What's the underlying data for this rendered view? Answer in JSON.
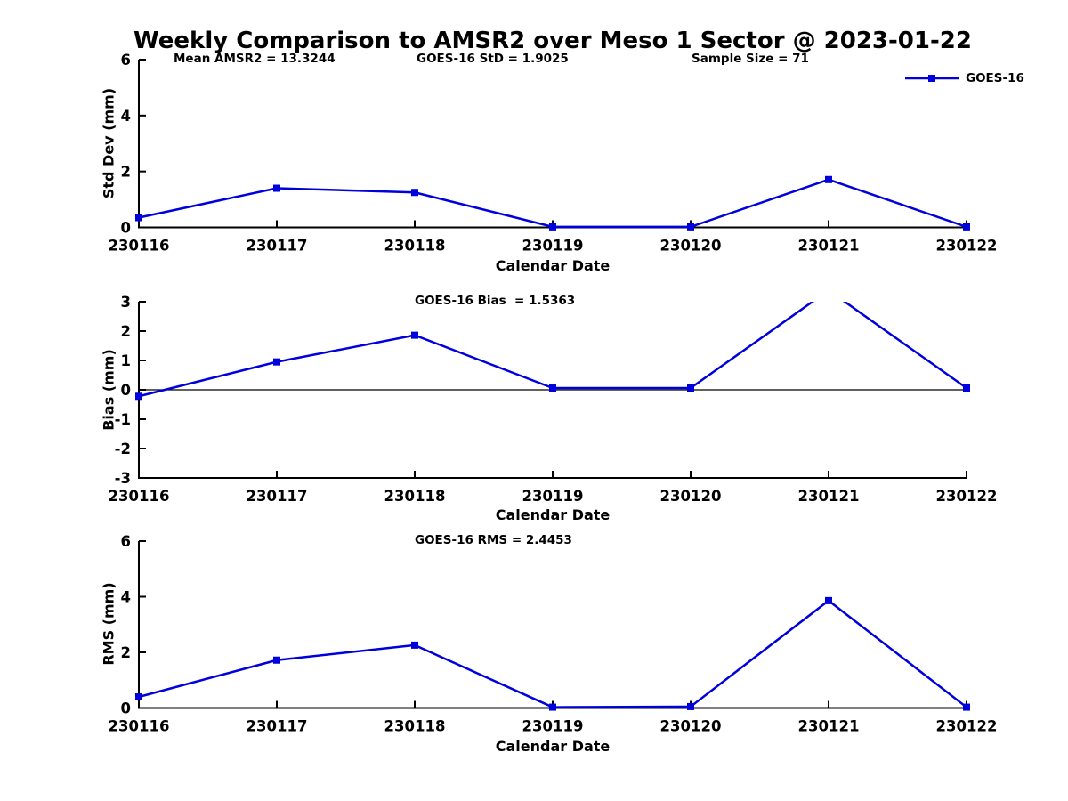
{
  "figure": {
    "title": "Weekly Comparison to AMSR2 over Meso 1 Sector @ 2023-01-22",
    "background_color": "#ffffff",
    "series_color": "#0000dd",
    "axis_color": "#000000",
    "text_color": "#000000"
  },
  "legend": {
    "label": "GOES-16",
    "marker": "filled-square",
    "position": "top-right-outside"
  },
  "chart_data": [
    {
      "type": "line",
      "panel": "std-dev",
      "annotations": [
        "Mean AMSR2 = 13.3244",
        "GOES-16 StD = 1.9025",
        "Sample Size = 71"
      ],
      "categories": [
        "230116",
        "230117",
        "230118",
        "230119",
        "230120",
        "230121",
        "230122"
      ],
      "series": [
        {
          "name": "GOES-16",
          "values": [
            0.35,
            1.4,
            1.25,
            0.02,
            0.02,
            1.71,
            0.02
          ]
        }
      ],
      "xlabel": "Calendar Date",
      "ylabel": "Std Dev (mm)",
      "ylim": [
        0,
        6
      ],
      "yticks": [
        0,
        2,
        4,
        6
      ],
      "grid": false,
      "marker": "square",
      "zero_line": false
    },
    {
      "type": "line",
      "panel": "bias",
      "annotations": [
        "GOES-16 Bias  = 1.5363"
      ],
      "categories": [
        "230116",
        "230117",
        "230118",
        "230119",
        "230120",
        "230121",
        "230122"
      ],
      "series": [
        {
          "name": "GOES-16",
          "values": [
            -0.22,
            0.95,
            1.86,
            0.06,
            0.06,
            3.39,
            0.06
          ]
        }
      ],
      "xlabel": "Calendar Date",
      "ylabel": "Bias (mm)",
      "ylim": [
        -3,
        3
      ],
      "yticks": [
        -3,
        -2,
        -1,
        0,
        1,
        2,
        3
      ],
      "grid": false,
      "marker": "square",
      "zero_line": true,
      "note": "value at 230121 exceeds ylim and is clipped at top of axes"
    },
    {
      "type": "line",
      "panel": "rms",
      "annotations": [
        "GOES-16 RMS = 2.4453"
      ],
      "categories": [
        "230116",
        "230117",
        "230118",
        "230119",
        "230120",
        "230121",
        "230122"
      ],
      "series": [
        {
          "name": "GOES-16",
          "values": [
            0.4,
            1.72,
            2.26,
            0.03,
            0.05,
            3.86,
            0.03
          ]
        }
      ],
      "xlabel": "Calendar Date",
      "ylabel": "RMS (mm)",
      "ylim": [
        0,
        6
      ],
      "yticks": [
        0,
        2,
        4,
        6
      ],
      "grid": false,
      "marker": "square",
      "zero_line": false
    }
  ]
}
